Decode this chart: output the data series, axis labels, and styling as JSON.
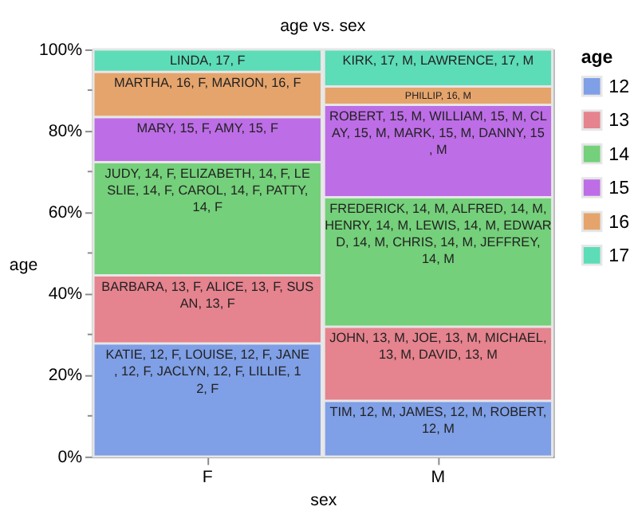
{
  "chart_data": {
    "type": "bar",
    "title": "age vs. sex",
    "xlabel": "sex",
    "ylabel": "age",
    "legend_title": "age",
    "legend": "right",
    "stacked": true,
    "grid": false,
    "categories": [
      "F",
      "M"
    ],
    "series": [
      {
        "name": "12",
        "color": "#7f9fe6",
        "values": [
          27.8,
          13.7
        ]
      },
      {
        "name": "13",
        "color": "#e5838e",
        "values": [
          16.7,
          18.2
        ]
      },
      {
        "name": "14",
        "color": "#74d07a",
        "values": [
          27.8,
          31.8
        ]
      },
      {
        "name": "15",
        "color": "#bd6de6",
        "values": [
          11.1,
          22.7
        ]
      },
      {
        "name": "16",
        "color": "#e5a46c",
        "values": [
          11.1,
          4.5
        ]
      },
      {
        "name": "17",
        "color": "#5ddcb8",
        "values": [
          5.5,
          9.1
        ]
      }
    ],
    "annotations": [
      {
        "text": "KATIE, 12, F, LOUISE, 12, F, JANE, 12, F, JACLYN, 12, F, LILLIE, 12, F",
        "x": "F",
        "y": 27.8
      },
      {
        "text": "TIM, 12, M, JAMES, 12, M, ROBERT, 12, M",
        "x": "M",
        "y": 13.7
      },
      {
        "text": "BARBARA, 13, F, ALICE, 13, F, SUSAN, 13, F",
        "x": "F",
        "y": 44.5
      },
      {
        "text": "JOHN, 13, M, JOE, 13, M, MICHAEL, 13, M, DAVID, 13, M",
        "x": "M",
        "y": 31.9
      },
      {
        "text": "JUDY, 14, F, ELIZABETH, 14, F, LESLIE, 14, F, CAROL, 14, F, PATTY, 14, F",
        "x": "F",
        "y": 72.3
      },
      {
        "text": "FREDERICK, 14, M, ALFRED, 14, M, HENRY, 14, M, LEWIS, 14, M, EDWARD, 14, M, CHRIS, 14, M, JEFFREY, 14, M",
        "x": "M",
        "y": 63.7
      },
      {
        "text": "MARY, 15, F, AMY, 15, F",
        "x": "F",
        "y": 83.4
      },
      {
        "text": "ROBERT, 15, M, WILLIAM, 15, M, CLAY, 15, M, MARK, 15, M, DANNY, 15, M",
        "x": "M",
        "y": 86.4
      },
      {
        "text": "MARTHA, 16, F, MARION, 16, F",
        "x": "F",
        "y": 94.5
      },
      {
        "text": "PHILLIP, 16, M",
        "x": "M",
        "y": 90.9
      },
      {
        "text": "LINDA, 17, F",
        "x": "F",
        "y": 100
      },
      {
        "text": "KIRK, 17, M, LAWRENCE, 17, M",
        "x": "M",
        "y": 100
      }
    ],
    "ylim": [
      0,
      100
    ],
    "yticks": [
      {
        "value": 0,
        "label": "0%"
      },
      {
        "value": 10,
        "label": null
      },
      {
        "value": 20,
        "label": "20%"
      },
      {
        "value": 30,
        "label": null
      },
      {
        "value": 40,
        "label": "40%"
      },
      {
        "value": 50,
        "label": null
      },
      {
        "value": 60,
        "label": "60%"
      },
      {
        "value": 70,
        "label": null
      },
      {
        "value": 80,
        "label": "80%"
      },
      {
        "value": 90,
        "label": null
      },
      {
        "value": 100,
        "label": "100%"
      }
    ]
  }
}
